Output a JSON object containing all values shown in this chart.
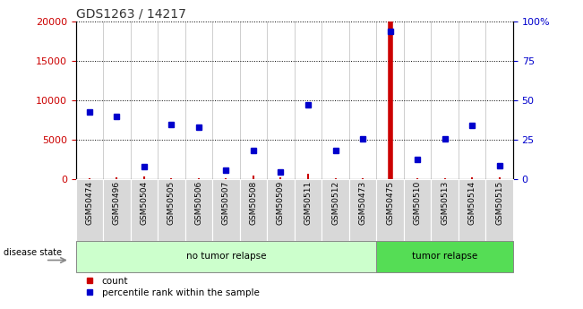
{
  "title": "GDS1263 / 14217",
  "samples": [
    "GSM50474",
    "GSM50496",
    "GSM50504",
    "GSM50505",
    "GSM50506",
    "GSM50507",
    "GSM50508",
    "GSM50509",
    "GSM50511",
    "GSM50512",
    "GSM50473",
    "GSM50475",
    "GSM50510",
    "GSM50513",
    "GSM50514",
    "GSM50515"
  ],
  "count_values": [
    120,
    200,
    300,
    120,
    80,
    120,
    500,
    200,
    700,
    180,
    100,
    20000,
    150,
    120,
    200,
    200
  ],
  "percentile_values": [
    8500,
    8000,
    1600,
    6900,
    6600,
    1100,
    3600,
    900,
    9500,
    3700,
    5100,
    18800,
    2500,
    5100,
    6800,
    1700
  ],
  "no_tumor_count": 11,
  "tumor_count": 5,
  "no_tumor_label": "no tumor relapse",
  "tumor_label": "tumor relapse",
  "disease_state_label": "disease state",
  "legend_count": "count",
  "legend_pct": "percentile rank within the sample",
  "ylim_left": [
    0,
    20000
  ],
  "ylim_right": [
    0,
    100
  ],
  "yticks_left": [
    0,
    5000,
    10000,
    15000,
    20000
  ],
  "yticks_right": [
    0,
    25,
    50,
    75,
    100
  ],
  "count_color": "#cc0000",
  "percentile_color": "#0000cc",
  "highlight_bar_index": 11,
  "highlight_bar_color": "#cc0000",
  "no_tumor_bg": "#ccffcc",
  "tumor_bg": "#55dd55",
  "sample_bg": "#d8d8d8",
  "title_color": "#333333"
}
